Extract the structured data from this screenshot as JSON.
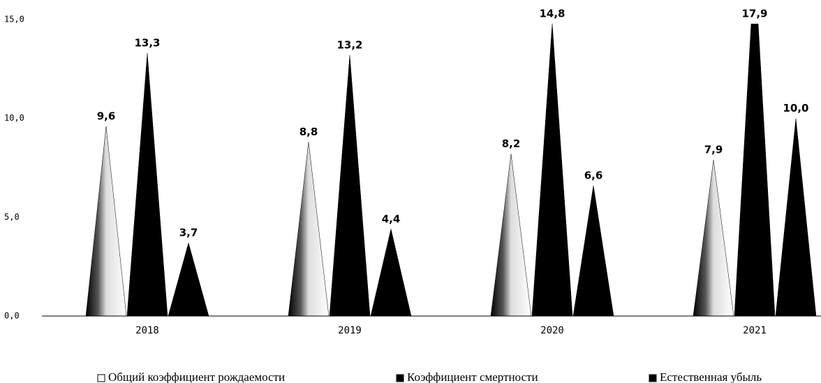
{
  "chart_data": {
    "type": "bar",
    "categories": [
      "2018",
      "2019",
      "2020",
      "2021"
    ],
    "series": [
      {
        "name": "Общий коэффициент рождаемости",
        "color": "#ffffff",
        "values": [
          9.6,
          8.8,
          8.2,
          7.9
        ],
        "value_labels": [
          "9,6",
          "8,8",
          "8,2",
          "7,9"
        ]
      },
      {
        "name": "Коэффициент смертности",
        "color": "#000000",
        "values": [
          13.3,
          13.2,
          14.8,
          17.9
        ],
        "value_labels": [
          "13,3",
          "13,2",
          "14,8",
          "17,9"
        ]
      },
      {
        "name": "Естественная убыль",
        "color": "#000000",
        "values": [
          3.7,
          4.4,
          6.6,
          10.0
        ],
        "value_labels": [
          "3,7",
          "4,4",
          "6,6",
          "10,0"
        ]
      }
    ],
    "ylim": [
      0,
      15
    ],
    "yticks": [
      {
        "value": 0,
        "label": "0,0"
      },
      {
        "value": 5,
        "label": "5,0"
      },
      {
        "value": 10,
        "label": "10,0"
      },
      {
        "value": 15,
        "label": "15,0"
      }
    ],
    "grid": false
  }
}
